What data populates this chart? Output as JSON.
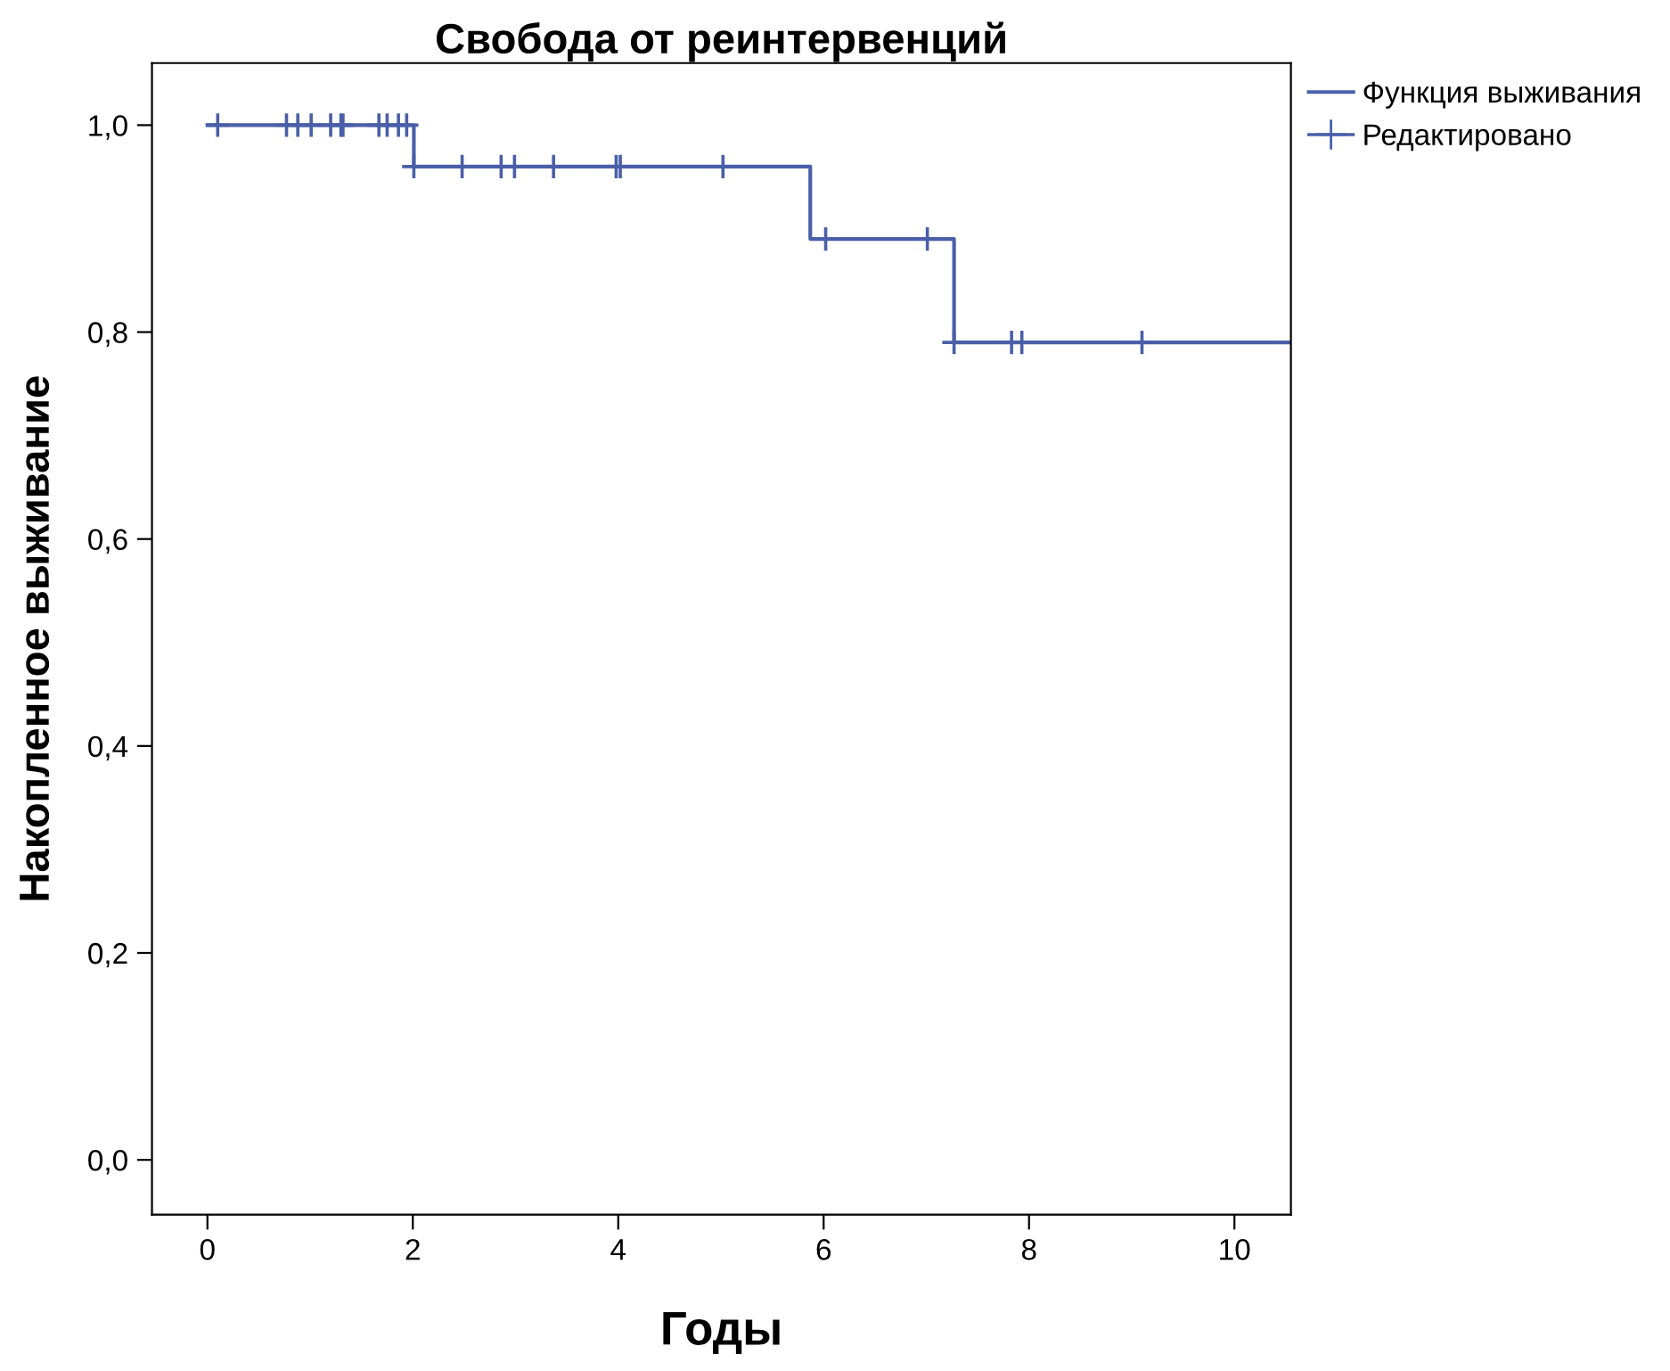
{
  "chart_data": {
    "type": "step",
    "title": "Свобода от реинтервенций",
    "xlabel": "Годы",
    "ylabel": "Накопленное выживание",
    "series": [
      {
        "name": "Функция выживания",
        "color": "#4a5fa8",
        "x": [
          0,
          2.01,
          5.87,
          7.27,
          10.55
        ],
        "values": [
          1.0,
          0.96,
          0.89,
          0.79,
          0.79
        ]
      },
      {
        "name": "Редактировано",
        "type": "scatter",
        "marker": "cross",
        "color": "#4a5fa8",
        "x": [
          0.1,
          0.77,
          0.88,
          1.01,
          1.2,
          1.3,
          1.32,
          1.67,
          1.75,
          1.86,
          1.94,
          2.01,
          2.48,
          2.86,
          2.99,
          3.37,
          3.98,
          4.02,
          5.02,
          6.02,
          7.01,
          7.27,
          7.83,
          7.93,
          9.1
        ],
        "values": [
          1.0,
          1.0,
          1.0,
          1.0,
          1.0,
          1.0,
          1.0,
          1.0,
          1.0,
          1.0,
          1.0,
          0.96,
          0.96,
          0.96,
          0.96,
          0.96,
          0.96,
          0.96,
          0.96,
          0.89,
          0.89,
          0.79,
          0.79,
          0.79,
          0.79
        ]
      }
    ],
    "xlim": [
      -0.54,
      10.55
    ],
    "xticks": [
      0,
      2,
      4,
      6,
      8,
      10
    ],
    "ylim": [
      -0.053,
      1.06
    ],
    "yticks": [
      {
        "value": 0.0,
        "label": "0,0"
      },
      {
        "value": 0.2,
        "label": "0,2"
      },
      {
        "value": 0.4,
        "label": "0,4"
      },
      {
        "value": 0.6,
        "label": "0,6"
      },
      {
        "value": 0.8,
        "label": "0,8"
      },
      {
        "value": 1.0,
        "label": "1,0"
      }
    ],
    "grid": false,
    "legend": "top right"
  }
}
